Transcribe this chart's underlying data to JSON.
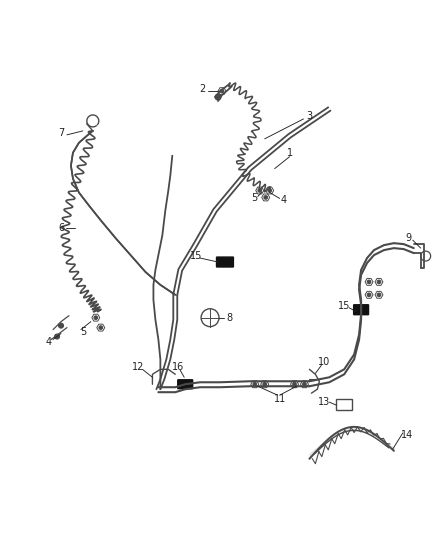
{
  "background_color": "#ffffff",
  "line_color": "#4a4a4a",
  "dark_color": "#222222",
  "label_color": "#333333",
  "fig_width": 4.38,
  "fig_height": 5.33,
  "dpi": 100
}
